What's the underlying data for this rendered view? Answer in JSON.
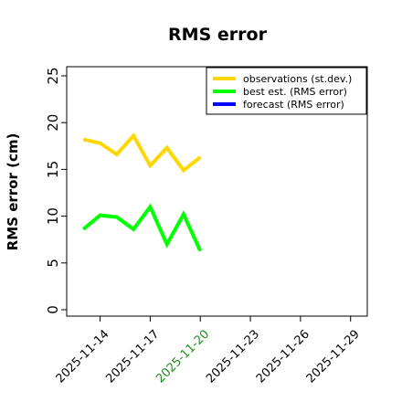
{
  "chart_data": {
    "type": "line",
    "title": "RMS error",
    "ylabel": "RMS error (cm)",
    "ylim": [
      0,
      25
    ],
    "yticks": [
      "0",
      "5",
      "10",
      "15",
      "20",
      "25"
    ],
    "x_dates": [
      "2025-11-13",
      "2025-11-14",
      "2025-11-15",
      "2025-11-16",
      "2025-11-17",
      "2025-11-18",
      "2025-11-19",
      "2025-11-20"
    ],
    "xlim": [
      "2025-11-12",
      "2025-11-30"
    ],
    "xticks": [
      {
        "label": "2025-11-14",
        "date": "2025-11-14",
        "color": "#000000"
      },
      {
        "label": "2025-11-17",
        "date": "2025-11-17",
        "color": "#000000"
      },
      {
        "label": "2025-11-20",
        "date": "2025-11-20",
        "color": "#228B22"
      },
      {
        "label": "2025-11-23",
        "date": "2025-11-23",
        "color": "#000000"
      },
      {
        "label": "2025-11-26",
        "date": "2025-11-26",
        "color": "#000000"
      },
      {
        "label": "2025-11-29",
        "date": "2025-11-29",
        "color": "#000000"
      }
    ],
    "series": [
      {
        "name": "observations (st.dev.)",
        "color": "#FFD700",
        "dates": [
          "2025-11-13",
          "2025-11-14",
          "2025-11-15",
          "2025-11-16",
          "2025-11-17",
          "2025-11-18",
          "2025-11-19",
          "2025-11-20"
        ],
        "values": [
          18.2,
          17.8,
          16.6,
          18.6,
          15.4,
          17.3,
          14.9,
          16.3
        ]
      },
      {
        "name": "best est. (RMS error)",
        "color": "#00FF00",
        "dates": [
          "2025-11-13",
          "2025-11-14",
          "2025-11-15",
          "2025-11-16",
          "2025-11-17",
          "2025-11-18",
          "2025-11-19",
          "2025-11-20"
        ],
        "values": [
          8.6,
          10.1,
          9.9,
          8.6,
          11.0,
          7.0,
          10.2,
          6.3
        ]
      },
      {
        "name": "forecast (RMS error)",
        "color": "#0000FF",
        "dates": [],
        "values": []
      }
    ],
    "legend_position": "top-right",
    "grid": false
  }
}
